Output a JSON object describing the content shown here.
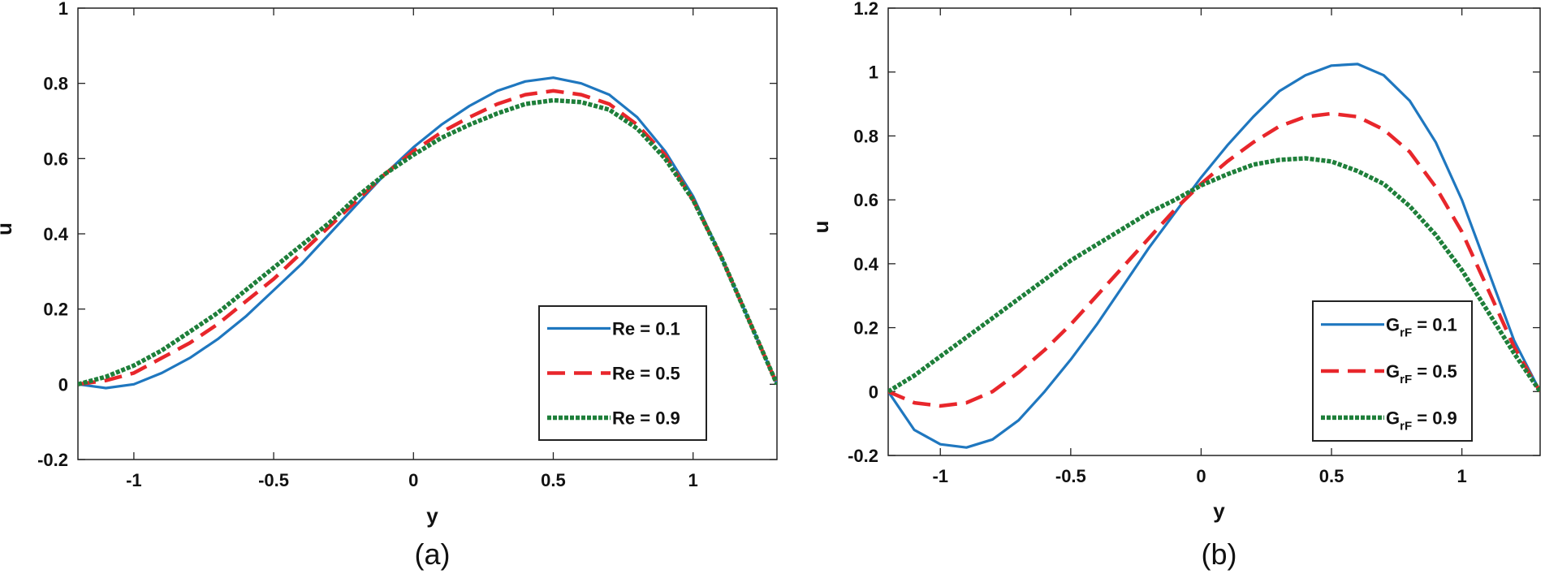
{
  "chart_data": [
    {
      "type": "line",
      "panel_label": "(a)",
      "xlabel": "y",
      "ylabel": "u",
      "xlim": [
        -1.2,
        1.3
      ],
      "ylim": [
        -0.2,
        1.0
      ],
      "xticks": [
        -1,
        -0.5,
        0,
        0.5,
        1
      ],
      "xtick_labels": [
        "-1",
        "-0.5",
        "0",
        "0.5",
        "1"
      ],
      "yticks": [
        -0.2,
        0,
        0.2,
        0.4,
        0.6,
        0.8,
        1
      ],
      "ytick_labels": [
        "-0.2",
        "0",
        "0.2",
        "0.4",
        "0.6",
        "0.8",
        "1"
      ],
      "legend_position": "bottom-right",
      "series": [
        {
          "name": "Re = 0.1",
          "label_main": "Re = 0.1",
          "color": "#1f77bf",
          "style": "solid",
          "x": [
            -1.2,
            -1.1,
            -1.0,
            -0.9,
            -0.8,
            -0.7,
            -0.6,
            -0.5,
            -0.4,
            -0.3,
            -0.2,
            -0.1,
            0.0,
            0.1,
            0.2,
            0.3,
            0.4,
            0.5,
            0.6,
            0.7,
            0.8,
            0.9,
            1.0,
            1.1,
            1.2,
            1.3
          ],
          "y": [
            0.0,
            -0.01,
            0.0,
            0.03,
            0.07,
            0.12,
            0.18,
            0.25,
            0.32,
            0.4,
            0.48,
            0.56,
            0.63,
            0.69,
            0.74,
            0.78,
            0.805,
            0.815,
            0.8,
            0.77,
            0.71,
            0.62,
            0.5,
            0.34,
            0.17,
            0.0
          ]
        },
        {
          "name": "Re = 0.5",
          "label_main": "Re = 0.5",
          "color": "#e8262b",
          "style": "dashed",
          "x": [
            -1.2,
            -1.1,
            -1.0,
            -0.9,
            -0.8,
            -0.7,
            -0.6,
            -0.5,
            -0.4,
            -0.3,
            -0.2,
            -0.1,
            0.0,
            0.1,
            0.2,
            0.3,
            0.4,
            0.5,
            0.6,
            0.7,
            0.8,
            0.9,
            1.0,
            1.1,
            1.2,
            1.3
          ],
          "y": [
            0.0,
            0.01,
            0.03,
            0.07,
            0.11,
            0.16,
            0.22,
            0.28,
            0.35,
            0.42,
            0.49,
            0.56,
            0.62,
            0.67,
            0.71,
            0.745,
            0.77,
            0.78,
            0.77,
            0.745,
            0.69,
            0.61,
            0.49,
            0.34,
            0.17,
            0.0
          ]
        },
        {
          "name": "Re = 0.9",
          "label_main": "Re = 0.9",
          "color": "#1e7f3a",
          "style": "dotted",
          "x": [
            -1.2,
            -1.1,
            -1.0,
            -0.9,
            -0.8,
            -0.7,
            -0.6,
            -0.5,
            -0.4,
            -0.3,
            -0.2,
            -0.1,
            0.0,
            0.1,
            0.2,
            0.3,
            0.4,
            0.5,
            0.6,
            0.7,
            0.8,
            0.9,
            1.0,
            1.1,
            1.2,
            1.3
          ],
          "y": [
            0.0,
            0.02,
            0.05,
            0.09,
            0.14,
            0.19,
            0.25,
            0.31,
            0.37,
            0.43,
            0.5,
            0.56,
            0.61,
            0.655,
            0.69,
            0.72,
            0.745,
            0.755,
            0.75,
            0.73,
            0.68,
            0.6,
            0.49,
            0.34,
            0.17,
            0.0
          ]
        }
      ]
    },
    {
      "type": "line",
      "panel_label": "(b)",
      "xlabel": "y",
      "ylabel": "u",
      "xlim": [
        -1.2,
        1.3
      ],
      "ylim": [
        -0.2,
        1.2
      ],
      "xticks": [
        -1,
        -0.5,
        0,
        0.5,
        1
      ],
      "xtick_labels": [
        "-1",
        "-0.5",
        "0",
        "0.5",
        "1"
      ],
      "yticks": [
        -0.2,
        0,
        0.2,
        0.4,
        0.6,
        0.8,
        1,
        1.2
      ],
      "ytick_labels": [
        "-0.2",
        "0",
        "0.2",
        "0.4",
        "0.6",
        "0.8",
        "1",
        "1.2"
      ],
      "legend_position": "bottom-right",
      "series": [
        {
          "name": "GrF = 0.1",
          "label_main": "G",
          "label_sub": "rF",
          "label_tail": " = 0.1",
          "color": "#1f77bf",
          "style": "solid",
          "x": [
            -1.2,
            -1.1,
            -1.0,
            -0.9,
            -0.8,
            -0.7,
            -0.6,
            -0.5,
            -0.4,
            -0.3,
            -0.2,
            -0.1,
            0.0,
            0.1,
            0.2,
            0.3,
            0.4,
            0.5,
            0.6,
            0.7,
            0.8,
            0.9,
            1.0,
            1.1,
            1.2,
            1.3
          ],
          "y": [
            0.0,
            -0.12,
            -0.165,
            -0.175,
            -0.15,
            -0.09,
            0.0,
            0.1,
            0.21,
            0.33,
            0.45,
            0.56,
            0.67,
            0.77,
            0.86,
            0.94,
            0.99,
            1.02,
            1.025,
            0.99,
            0.91,
            0.78,
            0.6,
            0.38,
            0.16,
            0.0
          ]
        },
        {
          "name": "GrF = 0.5",
          "label_main": "G",
          "label_sub": "rF",
          "label_tail": " = 0.5",
          "color": "#e8262b",
          "style": "dashed",
          "x": [
            -1.2,
            -1.1,
            -1.0,
            -0.9,
            -0.8,
            -0.7,
            -0.6,
            -0.5,
            -0.4,
            -0.3,
            -0.2,
            -0.1,
            0.0,
            0.1,
            0.2,
            0.3,
            0.4,
            0.5,
            0.6,
            0.7,
            0.8,
            0.9,
            1.0,
            1.1,
            1.2,
            1.3
          ],
          "y": [
            0.0,
            -0.035,
            -0.045,
            -0.035,
            0.0,
            0.06,
            0.13,
            0.21,
            0.3,
            0.39,
            0.48,
            0.57,
            0.65,
            0.72,
            0.78,
            0.83,
            0.86,
            0.87,
            0.86,
            0.82,
            0.75,
            0.64,
            0.5,
            0.32,
            0.14,
            0.0
          ]
        },
        {
          "name": "GrF = 0.9",
          "label_main": "G",
          "label_sub": "rF",
          "label_tail": " = 0.9",
          "color": "#1e7f3a",
          "style": "dotted",
          "x": [
            -1.2,
            -1.1,
            -1.0,
            -0.9,
            -0.8,
            -0.7,
            -0.6,
            -0.5,
            -0.4,
            -0.3,
            -0.2,
            -0.1,
            0.0,
            0.1,
            0.2,
            0.3,
            0.4,
            0.5,
            0.6,
            0.7,
            0.8,
            0.9,
            1.0,
            1.1,
            1.2,
            1.3
          ],
          "y": [
            0.0,
            0.05,
            0.11,
            0.17,
            0.23,
            0.29,
            0.35,
            0.41,
            0.46,
            0.51,
            0.56,
            0.6,
            0.645,
            0.68,
            0.71,
            0.725,
            0.73,
            0.72,
            0.69,
            0.65,
            0.58,
            0.49,
            0.38,
            0.25,
            0.12,
            0.0
          ]
        }
      ]
    }
  ]
}
